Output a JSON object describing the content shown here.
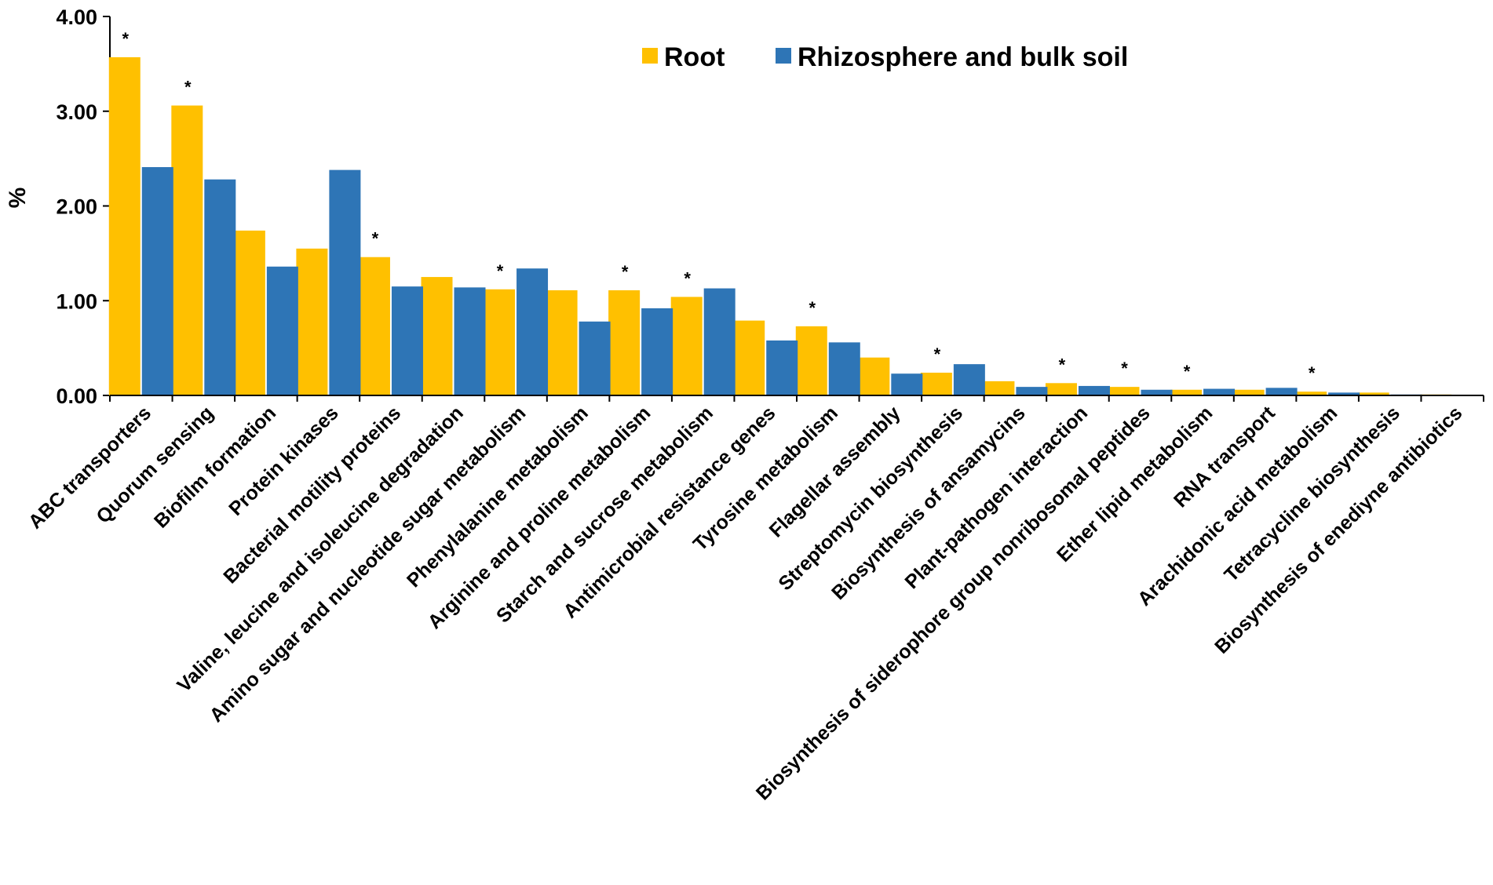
{
  "chart_data": {
    "type": "bar",
    "ylabel": "%",
    "ylim": [
      0,
      4
    ],
    "yticks": [
      "0.00",
      "1.00",
      "2.00",
      "3.00",
      "4.00"
    ],
    "grid": false,
    "legend_position": "top-right",
    "categories": [
      "ABC transporters",
      "Quorum sensing",
      "Biofilm formation",
      "Protein kinases",
      "Bacterial motility proteins",
      "Valine, leucine and isoleucine degradation",
      "Amino sugar and nucleotide sugar metabolism",
      "Phenylalanine metabolism",
      "Arginine and proline metabolism",
      "Starch and sucrose metabolism",
      "Antimicrobial resistance genes",
      "Tyrosine metabolism",
      "Flagellar assembly",
      "Streptomycin biosynthesis",
      "Biosynthesis of ansamycins",
      "Plant-pathogen interaction",
      "Biosynthesis of siderophore group nonribosomal peptides",
      "Ether lipid metabolism",
      "RNA transport",
      "Arachidonic acid metabolism",
      "Tetracycline biosynthesis",
      "Biosynthesis of enediyne antibiotics"
    ],
    "series": [
      {
        "name": "Root",
        "color": "#FFC000",
        "values": [
          3.57,
          3.06,
          1.74,
          1.55,
          1.46,
          1.25,
          1.12,
          1.11,
          1.11,
          1.04,
          0.79,
          0.73,
          0.4,
          0.24,
          0.15,
          0.13,
          0.09,
          0.06,
          0.06,
          0.04,
          0.03,
          0.01
        ]
      },
      {
        "name": "Rhizosphere and bulk soil",
        "color": "#2E75B6",
        "values": [
          2.41,
          2.28,
          1.36,
          2.38,
          1.15,
          1.14,
          1.34,
          0.78,
          0.92,
          1.13,
          0.58,
          0.56,
          0.23,
          0.33,
          0.09,
          0.1,
          0.06,
          0.07,
          0.08,
          0.03,
          0.01,
          0.0
        ]
      }
    ],
    "significance_marker": "*",
    "significant": [
      true,
      true,
      false,
      false,
      true,
      false,
      true,
      false,
      true,
      true,
      false,
      true,
      false,
      true,
      false,
      true,
      true,
      true,
      false,
      true,
      false,
      false
    ]
  }
}
